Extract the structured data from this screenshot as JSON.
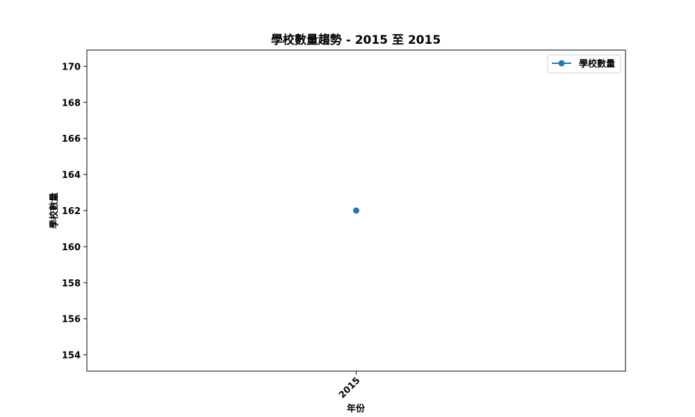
{
  "chart_data": {
    "type": "line",
    "title": "學校數量趨勢 - 2015 至 2015",
    "xlabel": "年份",
    "ylabel": "學校數量",
    "categories": [
      "2015"
    ],
    "series": [
      {
        "name": "學校數量",
        "values": [
          162
        ],
        "color": "#1f77b4",
        "marker": "circle"
      }
    ],
    "ylim": [
      153.1,
      170.9
    ],
    "yticks": [
      154,
      156,
      158,
      160,
      162,
      164,
      166,
      168,
      170
    ],
    "grid": false,
    "legend_position": "top-right",
    "xtick_rotation": "45 degrees"
  }
}
